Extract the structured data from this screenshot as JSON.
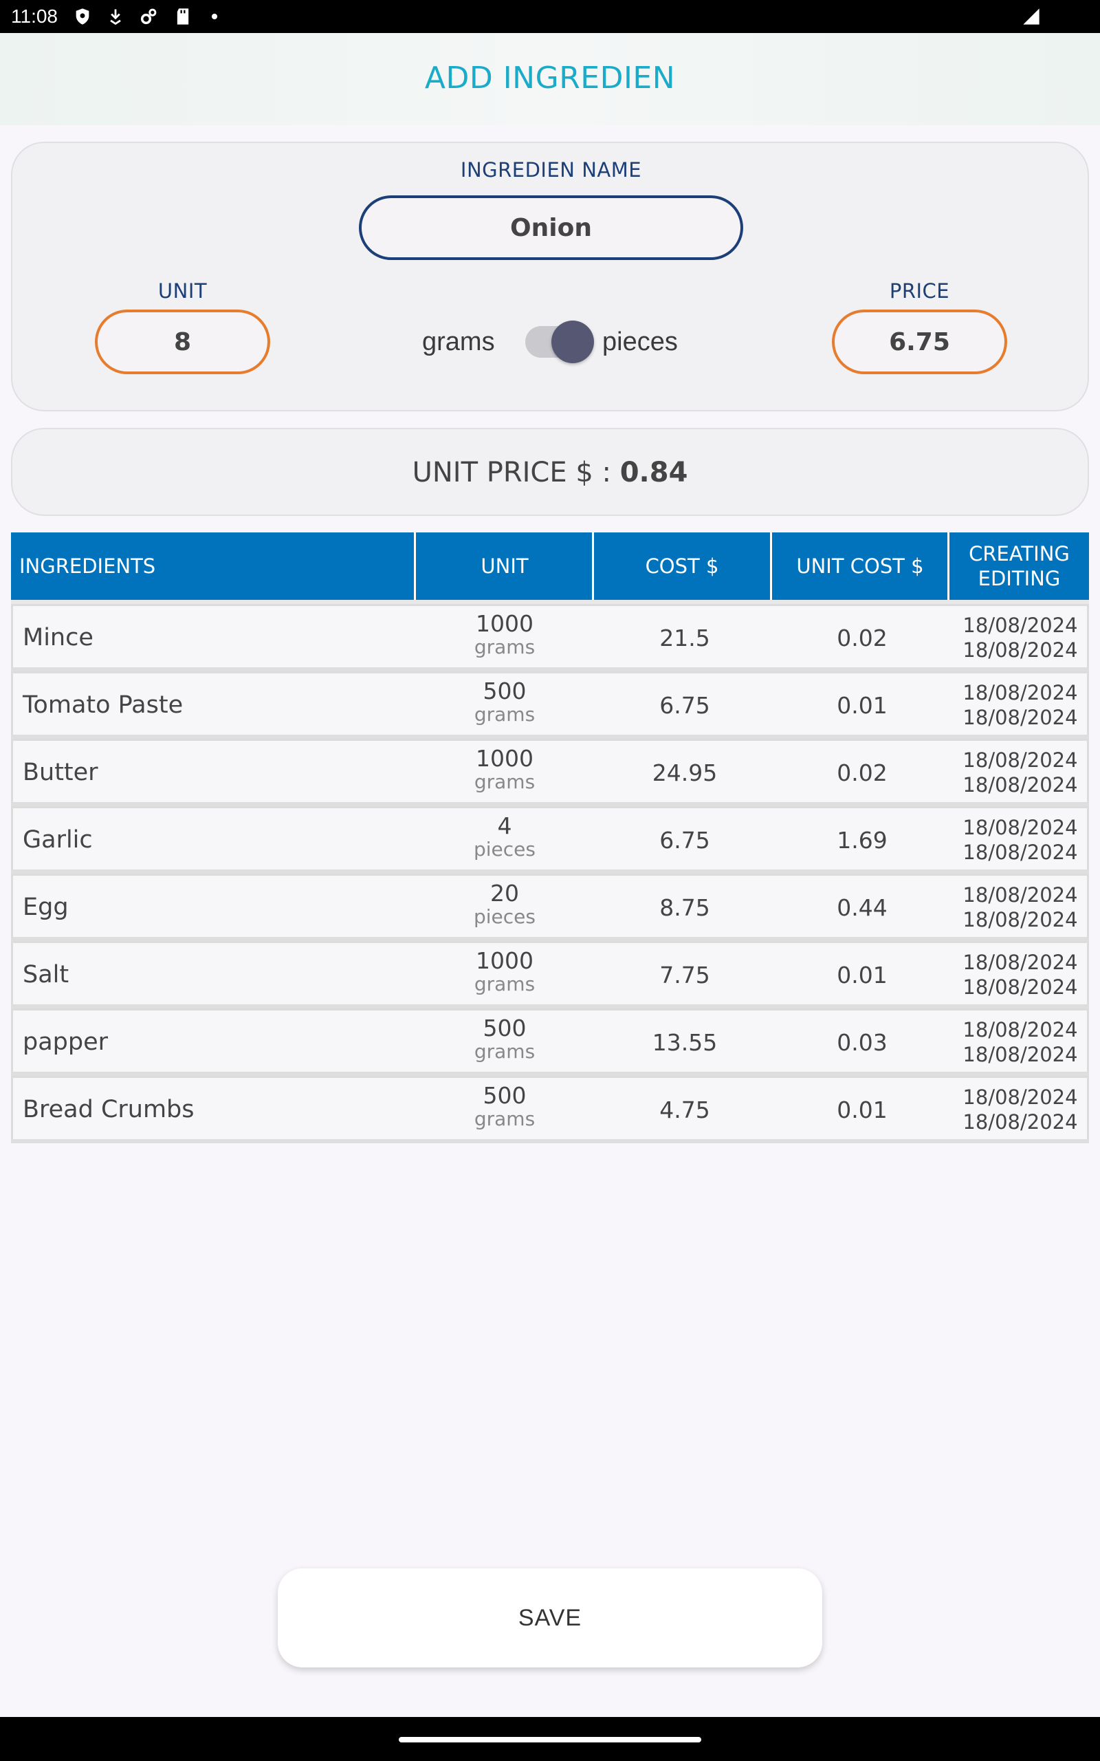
{
  "status_bar": {
    "time": "11:08",
    "icons": [
      "shield-icon",
      "download-icon",
      "settings-icon",
      "sd-card-icon",
      "dot-icon",
      "signal-icon"
    ]
  },
  "header": {
    "title": "ADD INGREDIEN"
  },
  "form": {
    "name_label": "INGREDIEN NAME",
    "name_value": "Onion",
    "unit_label": "UNIT",
    "unit_value": "8",
    "price_label": "PRICE",
    "price_value": "6.75",
    "toggle_left": "grams",
    "toggle_right": "pieces",
    "toggle_on": true
  },
  "unit_price": {
    "label": "UNIT PRICE $ :",
    "value": "0.84"
  },
  "table": {
    "headers": {
      "ingredients": "INGREDIENTS",
      "unit": "UNIT",
      "cost": "COST $",
      "unit_cost": "UNIT COST $",
      "dates_line1": "CREATING",
      "dates_line2": "EDITING"
    },
    "rows": [
      {
        "name": "Mince",
        "qty": "1000",
        "uom": "grams",
        "cost": "21.5",
        "unit_cost": "0.02",
        "created": "18/08/2024",
        "edited": "18/08/2024"
      },
      {
        "name": "Tomato Paste",
        "qty": "500",
        "uom": "grams",
        "cost": "6.75",
        "unit_cost": "0.01",
        "created": "18/08/2024",
        "edited": "18/08/2024"
      },
      {
        "name": "Butter",
        "qty": "1000",
        "uom": "grams",
        "cost": "24.95",
        "unit_cost": "0.02",
        "created": "18/08/2024",
        "edited": "18/08/2024"
      },
      {
        "name": "Garlic",
        "qty": "4",
        "uom": "pieces",
        "cost": "6.75",
        "unit_cost": "1.69",
        "created": "18/08/2024",
        "edited": "18/08/2024"
      },
      {
        "name": "Egg",
        "qty": "20",
        "uom": "pieces",
        "cost": "8.75",
        "unit_cost": "0.44",
        "created": "18/08/2024",
        "edited": "18/08/2024"
      },
      {
        "name": "Salt",
        "qty": "1000",
        "uom": "grams",
        "cost": "7.75",
        "unit_cost": "0.01",
        "created": "18/08/2024",
        "edited": "18/08/2024"
      },
      {
        "name": "papper",
        "qty": "500",
        "uom": "grams",
        "cost": "13.55",
        "unit_cost": "0.03",
        "created": "18/08/2024",
        "edited": "18/08/2024"
      },
      {
        "name": "Bread Crumbs",
        "qty": "500",
        "uom": "grams",
        "cost": "4.75",
        "unit_cost": "0.01",
        "created": "18/08/2024",
        "edited": "18/08/2024"
      }
    ]
  },
  "save_button": {
    "label": "SAVE"
  }
}
